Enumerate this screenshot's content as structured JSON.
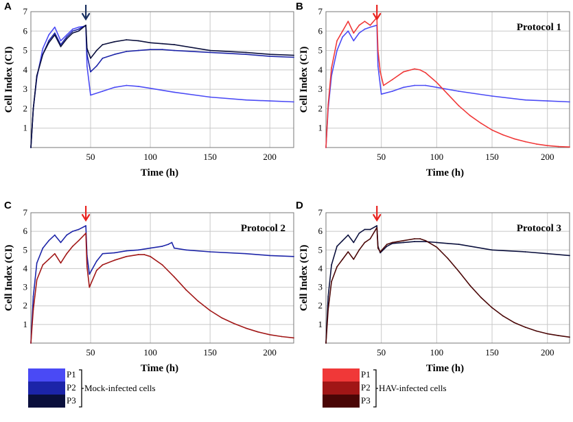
{
  "colors": {
    "P1_mock": "#4a4af5",
    "P2_mock": "#1c24a8",
    "P3_mock": "#0a0f3c",
    "P1_hav": "#f03838",
    "P2_hav": "#a11616",
    "P3_hav": "#4a0606",
    "arrow_mock": "#1a3060",
    "arrow_hav": "#e8231f",
    "grid": "#c8c8c8"
  },
  "chart_data": [
    {
      "type": "line",
      "panel": "A",
      "title": "",
      "xlabel": "Time (h)",
      "ylabel": "Cell Index (CI)",
      "xlim": [
        0,
        220
      ],
      "ylim": [
        0,
        7
      ],
      "xticks": [
        "50",
        "100",
        "150",
        "200"
      ],
      "yticks": [
        "1",
        "2",
        "3",
        "4",
        "5",
        "6",
        "7"
      ],
      "arrow": {
        "x": 46,
        "color": "mock"
      },
      "series": [
        {
          "name": "P1",
          "color_key": "P1_mock",
          "x": [
            0,
            2,
            5,
            10,
            15,
            20,
            25,
            30,
            35,
            40,
            46,
            47,
            50,
            60,
            70,
            80,
            90,
            100,
            120,
            150,
            180,
            200,
            220
          ],
          "y": [
            0,
            2.0,
            3.6,
            5.1,
            5.8,
            6.2,
            5.5,
            5.8,
            6.1,
            6.2,
            6.25,
            4.2,
            2.7,
            2.9,
            3.1,
            3.2,
            3.15,
            3.05,
            2.85,
            2.6,
            2.45,
            2.4,
            2.35
          ]
        },
        {
          "name": "P2",
          "color_key": "P2_mock",
          "x": [
            0,
            2,
            5,
            10,
            15,
            20,
            25,
            30,
            35,
            40,
            46,
            47,
            50,
            55,
            60,
            70,
            80,
            90,
            100,
            110,
            120,
            150,
            180,
            200,
            220
          ],
          "y": [
            0,
            2.0,
            3.7,
            4.8,
            5.5,
            5.9,
            5.3,
            5.7,
            6.0,
            6.1,
            6.3,
            4.8,
            3.9,
            4.2,
            4.6,
            4.8,
            4.95,
            5.0,
            5.05,
            5.05,
            5.0,
            4.9,
            4.8,
            4.7,
            4.65
          ]
        },
        {
          "name": "P3",
          "color_key": "P3_mock",
          "x": [
            0,
            2,
            5,
            10,
            15,
            20,
            25,
            30,
            35,
            40,
            46,
            47,
            50,
            55,
            60,
            70,
            80,
            90,
            100,
            110,
            120,
            150,
            180,
            200,
            220
          ],
          "y": [
            0,
            2.0,
            3.7,
            4.8,
            5.4,
            5.8,
            5.2,
            5.6,
            5.9,
            6.0,
            6.3,
            5.1,
            4.6,
            5.0,
            5.3,
            5.45,
            5.55,
            5.5,
            5.4,
            5.35,
            5.3,
            5.0,
            4.9,
            4.8,
            4.75
          ]
        }
      ]
    },
    {
      "type": "line",
      "panel": "B",
      "title": "Protocol 1",
      "xlabel": "Time (h)",
      "ylabel": "Cell Index (CI)",
      "xlim": [
        0,
        220
      ],
      "ylim": [
        0,
        7
      ],
      "xticks": [
        "50",
        "100",
        "150",
        "200"
      ],
      "yticks": [
        "1",
        "2",
        "3",
        "4",
        "5",
        "6",
        "7"
      ],
      "arrow": {
        "x": 46,
        "color": "hav"
      },
      "series": [
        {
          "name": "P1 mock",
          "color_key": "P1_mock",
          "x": [
            0,
            2,
            5,
            10,
            15,
            20,
            25,
            30,
            35,
            40,
            46,
            47,
            50,
            60,
            70,
            80,
            90,
            100,
            120,
            150,
            180,
            200,
            220
          ],
          "y": [
            0,
            2.0,
            3.7,
            5.0,
            5.7,
            6.0,
            5.5,
            5.9,
            6.1,
            6.2,
            6.3,
            4.2,
            2.75,
            2.9,
            3.1,
            3.2,
            3.2,
            3.1,
            2.9,
            2.65,
            2.45,
            2.4,
            2.35
          ]
        },
        {
          "name": "P1 HAV",
          "color_key": "P1_hav",
          "x": [
            0,
            2,
            5,
            10,
            15,
            20,
            25,
            30,
            35,
            40,
            46,
            47,
            49,
            52,
            60,
            70,
            80,
            85,
            90,
            100,
            110,
            120,
            130,
            140,
            150,
            160,
            170,
            180,
            190,
            200,
            210,
            220
          ],
          "y": [
            0,
            2.2,
            4.1,
            5.5,
            6.0,
            6.5,
            5.9,
            6.3,
            6.5,
            6.3,
            6.7,
            5.0,
            3.9,
            3.2,
            3.5,
            3.9,
            4.05,
            4.0,
            3.85,
            3.35,
            2.75,
            2.15,
            1.65,
            1.25,
            0.9,
            0.65,
            0.45,
            0.3,
            0.18,
            0.1,
            0.05,
            0.03
          ]
        }
      ]
    },
    {
      "type": "line",
      "panel": "C",
      "title": "Protocol 2",
      "xlabel": "Time (h)",
      "ylabel": "Cell Index (CI)",
      "xlim": [
        0,
        220
      ],
      "ylim": [
        0,
        7
      ],
      "xticks": [
        "50",
        "100",
        "150",
        "200"
      ],
      "yticks": [
        "1",
        "2",
        "3",
        "4",
        "5",
        "6",
        "7"
      ],
      "arrow": {
        "x": 46,
        "color": "hav"
      },
      "series": [
        {
          "name": "P2 mock",
          "color_key": "P2_mock",
          "x": [
            0,
            2,
            5,
            10,
            15,
            20,
            25,
            30,
            35,
            40,
            46,
            47,
            49,
            55,
            60,
            70,
            80,
            90,
            100,
            110,
            115,
            118,
            120,
            130,
            150,
            180,
            200,
            220
          ],
          "y": [
            0,
            2.5,
            4.3,
            5.1,
            5.5,
            5.8,
            5.4,
            5.8,
            6.0,
            6.1,
            6.3,
            4.7,
            3.7,
            4.4,
            4.8,
            4.85,
            4.95,
            5.0,
            5.1,
            5.2,
            5.3,
            5.4,
            5.1,
            5.0,
            4.9,
            4.8,
            4.7,
            4.65
          ]
        },
        {
          "name": "P2 HAV",
          "color_key": "P2_hav",
          "x": [
            0,
            2,
            5,
            10,
            15,
            20,
            25,
            30,
            35,
            40,
            46,
            47,
            49,
            55,
            60,
            70,
            80,
            90,
            95,
            100,
            110,
            120,
            130,
            140,
            150,
            160,
            170,
            180,
            190,
            200,
            210,
            220
          ],
          "y": [
            0,
            1.8,
            3.4,
            4.2,
            4.5,
            4.8,
            4.3,
            4.8,
            5.2,
            5.5,
            5.9,
            4.1,
            3.0,
            3.9,
            4.2,
            4.45,
            4.65,
            4.75,
            4.75,
            4.65,
            4.2,
            3.55,
            2.85,
            2.25,
            1.75,
            1.35,
            1.05,
            0.8,
            0.6,
            0.45,
            0.35,
            0.28
          ]
        }
      ]
    },
    {
      "type": "line",
      "panel": "D",
      "title": "Protocol 3",
      "xlabel": "Time (h)",
      "ylabel": "Cell Index (CI)",
      "xlim": [
        0,
        220
      ],
      "ylim": [
        0,
        7
      ],
      "xticks": [
        "50",
        "100",
        "150",
        "200"
      ],
      "yticks": [
        "1",
        "2",
        "3",
        "4",
        "5",
        "6",
        "7"
      ],
      "arrow": {
        "x": 46,
        "color": "hav"
      },
      "series": [
        {
          "name": "P3 mock",
          "color_key": "P3_mock",
          "x": [
            0,
            2,
            5,
            10,
            15,
            20,
            25,
            30,
            35,
            40,
            46,
            47,
            49,
            55,
            60,
            70,
            80,
            90,
            100,
            110,
            120,
            150,
            180,
            200,
            220
          ],
          "y": [
            0,
            2.5,
            4.2,
            5.2,
            5.5,
            5.8,
            5.4,
            5.9,
            6.1,
            6.1,
            6.3,
            5.2,
            4.85,
            5.2,
            5.35,
            5.4,
            5.45,
            5.45,
            5.4,
            5.35,
            5.3,
            5.0,
            4.9,
            4.8,
            4.7
          ]
        },
        {
          "name": "P3 HAV",
          "color_key": "P3_hav",
          "x": [
            0,
            2,
            5,
            10,
            15,
            20,
            25,
            30,
            35,
            40,
            46,
            47,
            49,
            55,
            60,
            70,
            80,
            85,
            90,
            100,
            110,
            120,
            130,
            140,
            150,
            160,
            170,
            180,
            190,
            200,
            210,
            220
          ],
          "y": [
            0,
            1.8,
            3.3,
            4.1,
            4.5,
            4.9,
            4.5,
            5.0,
            5.4,
            5.6,
            6.2,
            5.1,
            4.9,
            5.3,
            5.4,
            5.5,
            5.6,
            5.6,
            5.5,
            5.15,
            4.55,
            3.85,
            3.1,
            2.45,
            1.9,
            1.45,
            1.1,
            0.85,
            0.65,
            0.5,
            0.4,
            0.32
          ]
        }
      ]
    }
  ],
  "legend_mock": {
    "items": [
      "P1",
      "P2",
      "P3"
    ],
    "label": "Mock-infected cells"
  },
  "legend_hav": {
    "items": [
      "P1",
      "P2",
      "P3"
    ],
    "label": "HAV-infected cells"
  }
}
